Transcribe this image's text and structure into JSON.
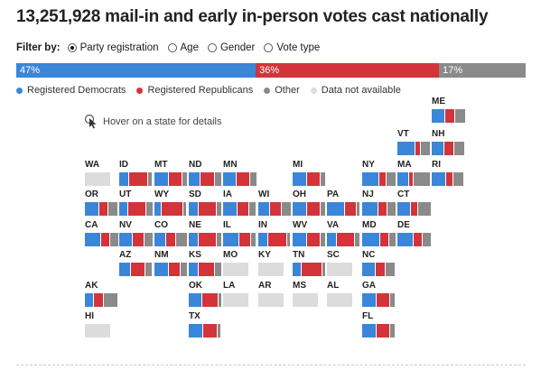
{
  "title": "13,251,928 mail-in and early in-person votes cast nationally",
  "filter": {
    "label": "Filter by:",
    "options": [
      {
        "label": "Party registration",
        "checked": true
      },
      {
        "label": "Age",
        "checked": false
      },
      {
        "label": "Gender",
        "checked": false
      },
      {
        "label": "Vote type",
        "checked": false
      }
    ]
  },
  "colors": {
    "dem": "#3a86d8",
    "rep": "#d2343a",
    "other": "#8a8a8a",
    "nodata": "#dcdcdc"
  },
  "national": [
    {
      "key": "dem",
      "label": "47%",
      "share": 0.47
    },
    {
      "key": "rep",
      "label": "36%",
      "share": 0.36
    },
    {
      "key": "other",
      "label": "17%",
      "share": 0.17
    }
  ],
  "legend": [
    {
      "key": "dem",
      "label": "Registered Democrats"
    },
    {
      "key": "rep",
      "label": "Registered Republicans"
    },
    {
      "key": "other",
      "label": "Other"
    },
    {
      "key": "nodata",
      "label": "Data not available"
    }
  ],
  "hover_hint": "Hover on a state for details",
  "states": [
    {
      "abbr": "ME",
      "dem": 0.4,
      "rep": 0.28,
      "other": 0.32
    },
    {
      "abbr": "VT",
      "dem": 0.55,
      "rep": 0.15,
      "other": 0.3
    },
    {
      "abbr": "NH",
      "dem": 0.38,
      "rep": 0.3,
      "other": 0.32
    },
    {
      "abbr": "WA",
      "nodata": true
    },
    {
      "abbr": "ID",
      "dem": 0.3,
      "rep": 0.58,
      "other": 0.12
    },
    {
      "abbr": "MT",
      "dem": 0.45,
      "rep": 0.4,
      "other": 0.15
    },
    {
      "abbr": "ND",
      "dem": 0.35,
      "rep": 0.45,
      "other": 0.2
    },
    {
      "abbr": "MN",
      "dem": 0.4,
      "rep": 0.4,
      "other": 0.2
    },
    {
      "abbr": "MI",
      "dem": 0.45,
      "rep": 0.4,
      "other": 0.15
    },
    {
      "abbr": "NY",
      "dem": 0.52,
      "rep": 0.2,
      "other": 0.28
    },
    {
      "abbr": "MA",
      "dem": 0.35,
      "rep": 0.13,
      "other": 0.52
    },
    {
      "abbr": "RI",
      "dem": 0.45,
      "rep": 0.22,
      "other": 0.33
    },
    {
      "abbr": "OR",
      "dem": 0.45,
      "rep": 0.25,
      "other": 0.3
    },
    {
      "abbr": "UT",
      "dem": 0.25,
      "rep": 0.55,
      "other": 0.2
    },
    {
      "abbr": "WY",
      "dem": 0.22,
      "rep": 0.68,
      "other": 0.1
    },
    {
      "abbr": "SD",
      "dem": 0.3,
      "rep": 0.55,
      "other": 0.15
    },
    {
      "abbr": "IA",
      "dem": 0.45,
      "rep": 0.35,
      "other": 0.2
    },
    {
      "abbr": "WI",
      "dem": 0.35,
      "rep": 0.35,
      "other": 0.3
    },
    {
      "abbr": "OH",
      "dem": 0.45,
      "rep": 0.4,
      "other": 0.15
    },
    {
      "abbr": "PA",
      "dem": 0.55,
      "rep": 0.35,
      "other": 0.1
    },
    {
      "abbr": "NJ",
      "dem": 0.5,
      "rep": 0.25,
      "other": 0.25
    },
    {
      "abbr": "CT",
      "dem": 0.4,
      "rep": 0.2,
      "other": 0.4
    },
    {
      "abbr": "CA",
      "dem": 0.5,
      "rep": 0.25,
      "other": 0.25
    },
    {
      "abbr": "NV",
      "dem": 0.4,
      "rep": 0.35,
      "other": 0.25
    },
    {
      "abbr": "CO",
      "dem": 0.35,
      "rep": 0.3,
      "other": 0.35
    },
    {
      "abbr": "NE",
      "dem": 0.3,
      "rep": 0.55,
      "other": 0.15
    },
    {
      "abbr": "IL",
      "dem": 0.5,
      "rep": 0.35,
      "other": 0.15
    },
    {
      "abbr": "IN",
      "dem": 0.3,
      "rep": 0.6,
      "other": 0.1
    },
    {
      "abbr": "WV",
      "dem": 0.45,
      "rep": 0.4,
      "other": 0.15
    },
    {
      "abbr": "VA",
      "dem": 0.3,
      "rep": 0.55,
      "other": 0.15
    },
    {
      "abbr": "MD",
      "dem": 0.55,
      "rep": 0.25,
      "other": 0.2
    },
    {
      "abbr": "DE",
      "dem": 0.5,
      "rep": 0.25,
      "other": 0.25
    },
    {
      "abbr": "AZ",
      "dem": 0.35,
      "rep": 0.45,
      "other": 0.2
    },
    {
      "abbr": "NM",
      "dem": 0.45,
      "rep": 0.35,
      "other": 0.2
    },
    {
      "abbr": "KS",
      "dem": 0.3,
      "rep": 0.5,
      "other": 0.2
    },
    {
      "abbr": "MO",
      "nodata": true
    },
    {
      "abbr": "KY",
      "nodata": true
    },
    {
      "abbr": "TN",
      "dem": 0.25,
      "rep": 0.65,
      "other": 0.1
    },
    {
      "abbr": "SC",
      "nodata": true
    },
    {
      "abbr": "NC",
      "dem": 0.4,
      "rep": 0.3,
      "other": 0.3
    },
    {
      "abbr": "AK",
      "dem": 0.25,
      "rep": 0.3,
      "other": 0.45
    },
    {
      "abbr": "OK",
      "dem": 0.4,
      "rep": 0.5,
      "other": 0.1
    },
    {
      "abbr": "LA",
      "nodata": true
    },
    {
      "abbr": "AR",
      "nodata": true
    },
    {
      "abbr": "MS",
      "nodata": true
    },
    {
      "abbr": "AL",
      "nodata": true
    },
    {
      "abbr": "GA",
      "dem": 0.45,
      "rep": 0.4,
      "other": 0.15
    },
    {
      "abbr": "HI",
      "nodata": true
    },
    {
      "abbr": "TX",
      "dem": 0.45,
      "rep": 0.45,
      "other": 0.1
    },
    {
      "abbr": "FL",
      "dem": 0.45,
      "rep": 0.4,
      "other": 0.15
    }
  ]
}
